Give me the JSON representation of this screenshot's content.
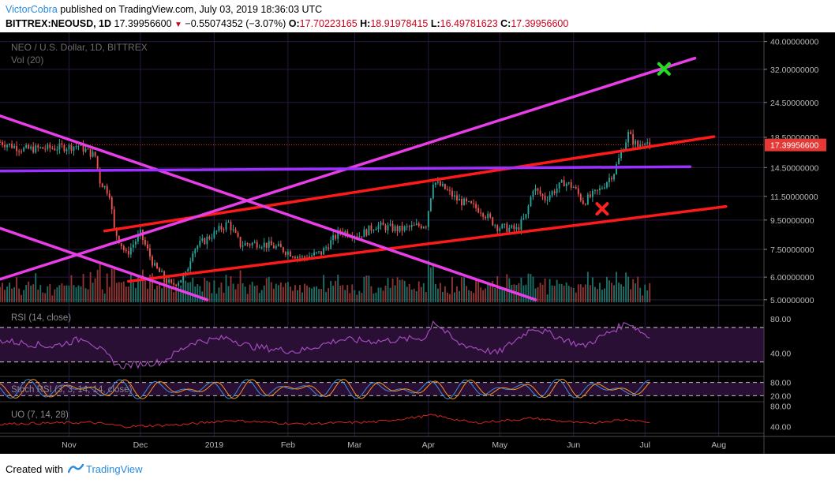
{
  "header": {
    "author": "VictorCobra",
    "published": "published on TradingView.com, July 03, 2019 18:36:03 UTC",
    "symbol": "BITTREX:NEOUSD, 1D",
    "last": "17.39956600",
    "change_arrow": "▼",
    "change": "−0.55074352 (−3.07%)",
    "o_label": "O:",
    "o_value": "17.70223165",
    "h_label": "H:",
    "h_value": "18.91978415",
    "l_label": "L:",
    "l_value": "16.49781623",
    "c_label": "C:",
    "c_value": "17.39956600"
  },
  "footer": {
    "created_with": "Created with",
    "brand": "TradingView"
  },
  "colors": {
    "background": "#000000",
    "up": "#26a69a",
    "down": "#ef5350",
    "trendline_red": "#ff1a1a",
    "trendline_magenta": "#e83ee8",
    "horizontal_purple": "#9b30ff",
    "rsi": "#a34bbd",
    "uo": "#d2261e",
    "stoch_k": "#3b8dd9",
    "stoch_d": "#f7931e",
    "price_label": "#e53935",
    "green_x": "#22dd22",
    "red_x": "#ff2222"
  },
  "chart_data": {
    "type": "candlestick",
    "title": "NEO / U.S. Dollar, 1D, BITTREX",
    "volume_label": "Vol (20)",
    "y_scale": "log",
    "y_ticks": [
      "40.00000000",
      "32.00000000",
      "24.50000000",
      "18.50000000",
      "14.50000000",
      "11.50000000",
      "9.50000000",
      "7.50000000",
      "6.00000000",
      "5.00000000"
    ],
    "y_tick_values": [
      40,
      32,
      24.5,
      18.5,
      14.5,
      11.5,
      9.5,
      7.5,
      6,
      5
    ],
    "ylim": [
      4.9,
      42
    ],
    "last_price_label": "17.39956600",
    "last_price": 17.4,
    "x_ticks": [
      "Nov",
      "Dec",
      "2019",
      "Feb",
      "Mar",
      "Apr",
      "May",
      "Jun",
      "Jul",
      "Aug"
    ],
    "x_tick_dates": [
      "2018-11-01",
      "2018-12-01",
      "2019-01-01",
      "2019-02-01",
      "2019-03-01",
      "2019-04-01",
      "2019-05-01",
      "2019-06-01",
      "2019-07-01",
      "2019-08-01"
    ],
    "x_range": [
      "2018-10-03",
      "2019-08-20"
    ],
    "price_anchors": [
      [
        "2018-10-03",
        17.8
      ],
      [
        "2018-10-13",
        16.8
      ],
      [
        "2018-10-26",
        17.0
      ],
      [
        "2018-11-05",
        17.3
      ],
      [
        "2018-11-12",
        15.9
      ],
      [
        "2018-11-14",
        13.0
      ],
      [
        "2018-11-18",
        11.8
      ],
      [
        "2018-11-20",
        8.8
      ],
      [
        "2018-11-25",
        7.2
      ],
      [
        "2018-12-01",
        8.5
      ],
      [
        "2018-12-07",
        6.5
      ],
      [
        "2018-12-14",
        5.6
      ],
      [
        "2018-12-20",
        6.1
      ],
      [
        "2018-12-23",
        7.5
      ],
      [
        "2018-12-30",
        8.3
      ],
      [
        "2019-01-07",
        9.3
      ],
      [
        "2019-01-12",
        7.8
      ],
      [
        "2019-01-20",
        7.9
      ],
      [
        "2019-01-28",
        7.6
      ],
      [
        "2019-02-07",
        7.0
      ],
      [
        "2019-02-15",
        7.3
      ],
      [
        "2019-02-23",
        8.7
      ],
      [
        "2019-03-03",
        8.4
      ],
      [
        "2019-03-10",
        9.1
      ],
      [
        "2019-03-20",
        8.8
      ],
      [
        "2019-03-31",
        9.2
      ],
      [
        "2019-04-03",
        13.0
      ],
      [
        "2019-04-08",
        12.2
      ],
      [
        "2019-04-13",
        11.2
      ],
      [
        "2019-04-23",
        10.3
      ],
      [
        "2019-04-30",
        9.0
      ],
      [
        "2019-05-08",
        8.8
      ],
      [
        "2019-05-12",
        9.8
      ],
      [
        "2019-05-15",
        12.3
      ],
      [
        "2019-05-20",
        11.3
      ],
      [
        "2019-05-28",
        12.9
      ],
      [
        "2019-06-01",
        12.4
      ],
      [
        "2019-06-05",
        11.0
      ],
      [
        "2019-06-12",
        12.1
      ],
      [
        "2019-06-18",
        14.0
      ],
      [
        "2019-06-21",
        16.3
      ],
      [
        "2019-06-24",
        19.0
      ],
      [
        "2019-06-26",
        18.0
      ],
      [
        "2019-06-28",
        17.2
      ],
      [
        "2019-07-01",
        18.2
      ],
      [
        "2019-07-03",
        17.4
      ]
    ],
    "trendlines": [
      {
        "color": "red",
        "from": [
          "2018-11-16",
          8.7
        ],
        "to": [
          "2019-07-30",
          18.6
        ]
      },
      {
        "color": "red",
        "from": [
          "2018-11-26",
          5.8
        ],
        "to": [
          "2019-08-04",
          10.6
        ]
      },
      {
        "color": "magenta",
        "from": [
          "2018-10-03",
          5.9
        ],
        "to": [
          "2019-07-22",
          35.0
        ]
      },
      {
        "color": "magenta",
        "from": [
          "2018-10-03",
          22.0
        ],
        "to": [
          "2019-05-16",
          5.0
        ]
      },
      {
        "color": "magenta",
        "from": [
          "2018-10-03",
          8.9
        ],
        "to": [
          "2018-12-29",
          5.0
        ]
      },
      {
        "color": "purple",
        "from": [
          "2018-10-03",
          14.1
        ],
        "to": [
          "2019-07-20",
          14.6
        ]
      }
    ],
    "markers": [
      {
        "type": "green-x",
        "at": [
          "2019-07-09",
          32.1
        ]
      },
      {
        "type": "red-x",
        "at": [
          "2019-06-13",
          10.4
        ]
      }
    ],
    "rsi": {
      "label": "RSI (14, close)",
      "ticks": [
        "80.00",
        "40.00"
      ],
      "tick_values": [
        80,
        40
      ],
      "bands": [
        70,
        30
      ],
      "anchors": [
        [
          "2018-10-03",
          55
        ],
        [
          "2018-10-25",
          48
        ],
        [
          "2018-11-08",
          58
        ],
        [
          "2018-11-16",
          40
        ],
        [
          "2018-11-22",
          25
        ],
        [
          "2018-12-10",
          30
        ],
        [
          "2018-12-23",
          53
        ],
        [
          "2019-01-07",
          58
        ],
        [
          "2019-01-16",
          48
        ],
        [
          "2019-02-05",
          42
        ],
        [
          "2019-02-23",
          56
        ],
        [
          "2019-03-10",
          54
        ],
        [
          "2019-03-31",
          58
        ],
        [
          "2019-04-03",
          78
        ],
        [
          "2019-04-13",
          52
        ],
        [
          "2019-04-30",
          40
        ],
        [
          "2019-05-15",
          70
        ],
        [
          "2019-06-05",
          48
        ],
        [
          "2019-06-24",
          76
        ],
        [
          "2019-07-03",
          58
        ]
      ]
    },
    "stoch_rsi": {
      "label": "Stoch RSI (3, 3, 14, 14, close)",
      "ticks": [
        "80.00",
        "20.00"
      ],
      "tick_values": [
        80,
        20
      ]
    },
    "uo": {
      "label": "UO (7, 14, 28)",
      "ticks": [
        "80.00",
        "40.00"
      ],
      "tick_values": [
        80,
        40
      ],
      "anchors": [
        [
          "2018-10-03",
          45
        ],
        [
          "2018-11-10",
          48
        ],
        [
          "2018-11-25",
          40
        ],
        [
          "2018-12-20",
          44
        ],
        [
          "2019-01-07",
          52
        ],
        [
          "2019-02-05",
          45
        ],
        [
          "2019-03-10",
          49
        ],
        [
          "2019-04-03",
          62
        ],
        [
          "2019-04-20",
          47
        ],
        [
          "2019-05-15",
          56
        ],
        [
          "2019-06-05",
          46
        ],
        [
          "2019-06-24",
          54
        ],
        [
          "2019-07-03",
          48
        ]
      ]
    }
  }
}
